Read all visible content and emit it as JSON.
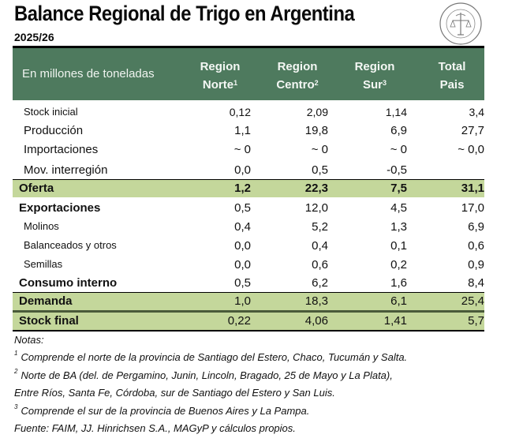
{
  "title": "Balance Regional de Trigo en Argentina",
  "season": "2025/26",
  "logo": {
    "name": "bolsa-de-comercio-de-rosario-seal",
    "text": "BOLSA DE COMERCIO DE ROSARIO"
  },
  "colors": {
    "header_bg": "#4e7a5e",
    "total_row_bg": "#c4d79b"
  },
  "table": {
    "unit_label": "En millones de toneladas",
    "columns": [
      {
        "line1": "Region",
        "line2": "Norte",
        "sup": "1"
      },
      {
        "line1": "Region",
        "line2": "Centro",
        "sup": "2"
      },
      {
        "line1": "Region",
        "line2": "Sur",
        "sup": "3"
      },
      {
        "line1": "Total",
        "line2": "Pais",
        "sup": ""
      }
    ],
    "rows": [
      {
        "label": "Stock inicial",
        "values": [
          "0,12",
          "2,09",
          "1,14",
          "3,4"
        ]
      },
      {
        "label": "Producción",
        "values": [
          "1,1",
          "19,8",
          "6,9",
          "27,7"
        ]
      },
      {
        "label": "Importaciones",
        "values": [
          "~ 0",
          "~ 0",
          "~ 0",
          "~ 0,0"
        ]
      },
      {
        "label": "Mov. interregión",
        "values": [
          "0,0",
          "0,5",
          "-0,5",
          ""
        ]
      },
      {
        "label": "Oferta",
        "values": [
          "1,2",
          "22,3",
          "7,5",
          "31,1"
        ]
      },
      {
        "label": "Exportaciones",
        "values": [
          "0,5",
          "12,0",
          "4,5",
          "17,0"
        ]
      },
      {
        "label": "Molinos",
        "values": [
          "0,4",
          "5,2",
          "1,3",
          "6,9"
        ]
      },
      {
        "label": "Balanceados y otros",
        "values": [
          "0,0",
          "0,4",
          "0,1",
          "0,6"
        ]
      },
      {
        "label": "Semillas",
        "values": [
          "0,0",
          "0,6",
          "0,2",
          "0,9"
        ]
      },
      {
        "label": "Consumo interno",
        "values": [
          "0,5",
          "6,2",
          "1,6",
          "8,4"
        ]
      },
      {
        "label": "Demanda",
        "values": [
          "1,0",
          "18,3",
          "6,1",
          "25,4"
        ]
      },
      {
        "label": "Stock final",
        "values": [
          "0,22",
          "4,06",
          "1,41",
          "5,7"
        ]
      }
    ]
  },
  "notes": {
    "heading": "Notas:",
    "n1_sup": "1",
    "n1": "Comprende el norte de la provincia de Santiago del Estero, Chaco, Tucumán y Salta.",
    "n2_sup": "2",
    "n2a": "Norte de BA (del. de Pergamino, Junin, Lincoln, Bragado, 25 de Mayo y La Plata),",
    "n2b": "Entre Ríos, Santa Fe, Córdoba, sur de Santiago del Estero y San Luis.",
    "n3_sup": "3",
    "n3": "Comprende el sur de la provincia de Buenos Aires y La Pampa.",
    "source": "Fuente: FAIM, JJ. Hinrichsen S.A., MAGyP y cálculos propios."
  }
}
